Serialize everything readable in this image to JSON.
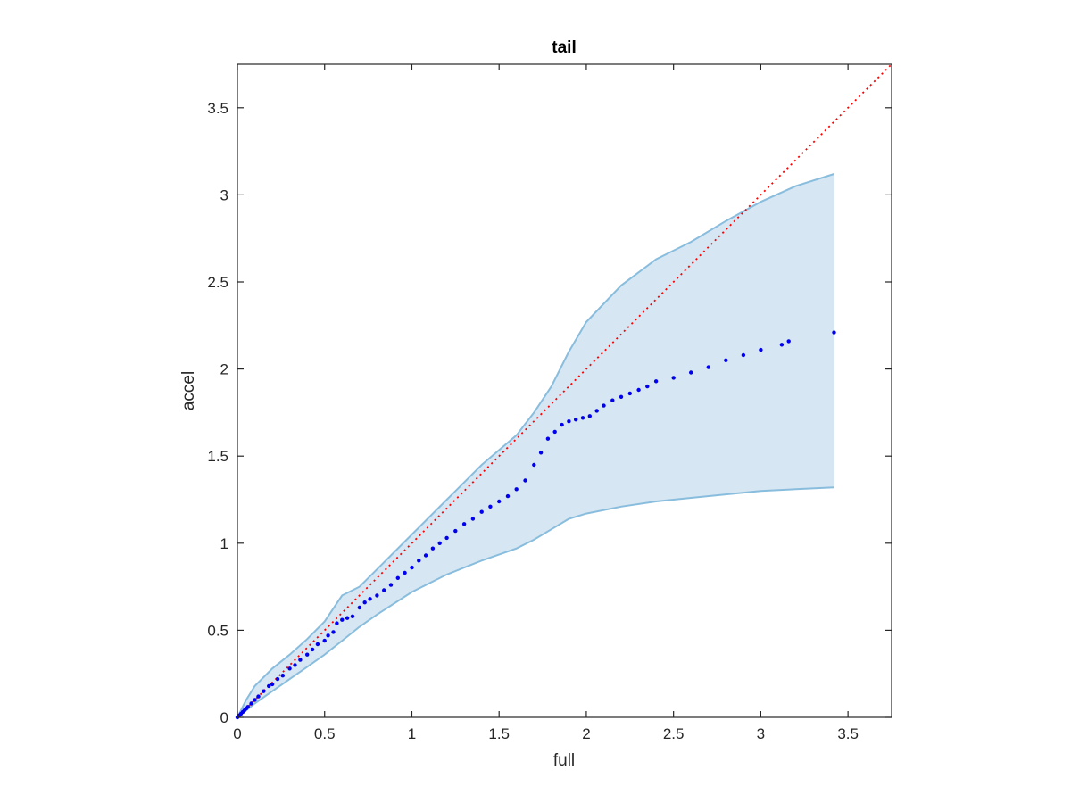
{
  "chart_data": {
    "type": "scatter",
    "title": "tail",
    "xlabel": "full",
    "ylabel": "accel",
    "xlim": [
      0,
      3.75
    ],
    "ylim": [
      0,
      3.75
    ],
    "xticks": [
      0,
      0.5,
      1,
      1.5,
      2,
      2.5,
      3,
      3.5
    ],
    "yticks": [
      0,
      0.5,
      1,
      1.5,
      2,
      2.5,
      3,
      3.5
    ],
    "xtick_labels": [
      "0",
      "0.5",
      "1",
      "1.5",
      "2",
      "2.5",
      "3",
      "3.5"
    ],
    "ytick_labels": [
      "0",
      "0.5",
      "1",
      "1.5",
      "2",
      "2.5",
      "3",
      "3.5"
    ],
    "grid": false,
    "colors": {
      "points": "#0000ee",
      "reference_line": "#ff0000",
      "band_fill": "#d6e6f3",
      "band_edge": "#89bddd",
      "axes": "#262626"
    },
    "reference_line": {
      "x": [
        0,
        3.75
      ],
      "y": [
        0,
        3.75
      ],
      "style": "dotted"
    },
    "band": {
      "x": [
        0,
        0.05,
        0.1,
        0.2,
        0.3,
        0.4,
        0.5,
        0.6,
        0.7,
        0.8,
        1.0,
        1.2,
        1.4,
        1.6,
        1.7,
        1.8,
        1.9,
        2.0,
        2.2,
        2.4,
        2.6,
        2.8,
        3.0,
        3.2,
        3.42
      ],
      "upper": [
        0,
        0.1,
        0.18,
        0.28,
        0.36,
        0.45,
        0.55,
        0.7,
        0.75,
        0.85,
        1.05,
        1.25,
        1.45,
        1.62,
        1.75,
        1.9,
        2.1,
        2.27,
        2.48,
        2.63,
        2.73,
        2.85,
        2.96,
        3.05,
        3.12
      ],
      "lower": [
        0,
        0.04,
        0.08,
        0.15,
        0.22,
        0.29,
        0.36,
        0.44,
        0.52,
        0.59,
        0.72,
        0.82,
        0.9,
        0.97,
        1.02,
        1.08,
        1.14,
        1.17,
        1.21,
        1.24,
        1.26,
        1.28,
        1.3,
        1.31,
        1.32
      ]
    },
    "series": [
      {
        "x": [
          0.0,
          0.01,
          0.02,
          0.03,
          0.04,
          0.05,
          0.06,
          0.08,
          0.1,
          0.12,
          0.15,
          0.18,
          0.2,
          0.23,
          0.26,
          0.3,
          0.33,
          0.36,
          0.4,
          0.43,
          0.46,
          0.5,
          0.52,
          0.55,
          0.57,
          0.6,
          0.63,
          0.66,
          0.7,
          0.73,
          0.76,
          0.8,
          0.84,
          0.88,
          0.92,
          0.96,
          1.0,
          1.04,
          1.08,
          1.12,
          1.16,
          1.2,
          1.25,
          1.3,
          1.35,
          1.4,
          1.45,
          1.5,
          1.55,
          1.6,
          1.65,
          1.7,
          1.74,
          1.78,
          1.82,
          1.86,
          1.9,
          1.94,
          1.98,
          2.02,
          2.06,
          2.1,
          2.15,
          2.2,
          2.25,
          2.3,
          2.35,
          2.4,
          2.5,
          2.6,
          2.7,
          2.8,
          2.9,
          3.0,
          3.12,
          3.16,
          3.42
        ],
        "y": [
          0.0,
          0.01,
          0.02,
          0.03,
          0.04,
          0.05,
          0.06,
          0.08,
          0.1,
          0.12,
          0.15,
          0.18,
          0.19,
          0.22,
          0.24,
          0.28,
          0.3,
          0.33,
          0.36,
          0.39,
          0.42,
          0.44,
          0.47,
          0.49,
          0.54,
          0.56,
          0.57,
          0.58,
          0.63,
          0.66,
          0.68,
          0.7,
          0.73,
          0.76,
          0.8,
          0.83,
          0.86,
          0.9,
          0.93,
          0.97,
          1.0,
          1.03,
          1.07,
          1.11,
          1.14,
          1.18,
          1.21,
          1.24,
          1.27,
          1.31,
          1.36,
          1.45,
          1.52,
          1.6,
          1.64,
          1.68,
          1.7,
          1.71,
          1.72,
          1.73,
          1.76,
          1.79,
          1.82,
          1.84,
          1.86,
          1.88,
          1.9,
          1.93,
          1.95,
          1.98,
          2.01,
          2.05,
          2.08,
          2.11,
          2.14,
          2.16,
          2.21
        ]
      }
    ]
  }
}
